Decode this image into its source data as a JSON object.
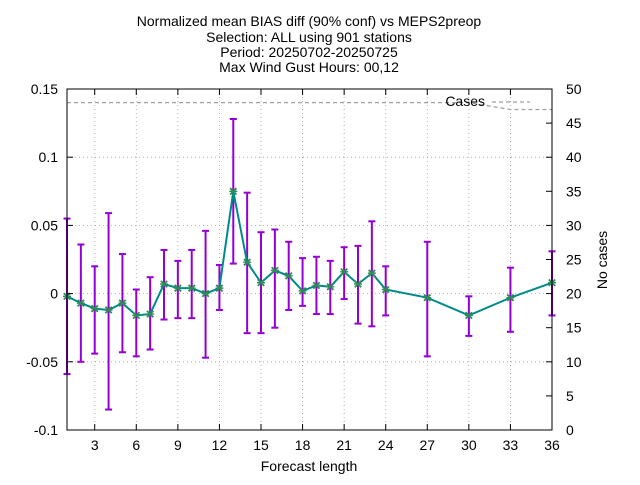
{
  "chart_data": {
    "type": "line",
    "title_lines": [
      "Normalized mean BIAS diff (90% conf) vs MEPS2preop",
      "Selection: ALL using   901 stations",
      "Period: 20250702-20250725",
      "Max Wind Gust   Hours: 00,12"
    ],
    "xlabel": "Forecast length",
    "ylabel": "",
    "y2label": "No cases",
    "xlim": [
      1,
      36
    ],
    "ylim": [
      -0.1,
      0.15
    ],
    "y2lim": [
      0,
      50
    ],
    "x_ticks": [
      3,
      6,
      9,
      12,
      15,
      18,
      21,
      24,
      27,
      30,
      33,
      36
    ],
    "y_ticks": [
      -0.1,
      -0.05,
      0,
      0.05,
      0.1,
      0.15
    ],
    "y_tick_labels": [
      "-0.1",
      "-0.05",
      "0",
      "0.05",
      "0.1",
      "0.15"
    ],
    "y2_ticks": [
      0,
      5,
      10,
      15,
      20,
      25,
      30,
      35,
      40,
      45,
      50
    ],
    "grid": true,
    "legend": "top-right",
    "series": [
      {
        "name": "",
        "color": "#008b8b",
        "marker_color": "#2e8b57",
        "x": [
          1,
          2,
          3,
          4,
          5,
          6,
          7,
          8,
          9,
          10,
          11,
          12,
          13,
          14,
          15,
          16,
          17,
          18,
          19,
          20,
          21,
          22,
          23,
          24,
          27,
          30,
          33,
          36
        ],
        "values": [
          -0.002,
          -0.007,
          -0.011,
          -0.012,
          -0.007,
          -0.016,
          -0.015,
          0.007,
          0.004,
          0.004,
          0.0,
          0.004,
          0.075,
          0.023,
          0.008,
          0.017,
          0.013,
          0.002,
          0.006,
          0.005,
          0.016,
          0.007,
          0.015,
          0.003,
          -0.003,
          -0.016,
          -0.003,
          0.008
        ],
        "error_low": [
          -0.059,
          -0.05,
          -0.044,
          -0.085,
          -0.043,
          -0.046,
          -0.041,
          -0.019,
          -0.018,
          -0.018,
          -0.047,
          -0.012,
          0.022,
          -0.029,
          -0.029,
          -0.025,
          -0.012,
          -0.009,
          -0.015,
          -0.015,
          -0.004,
          -0.022,
          -0.024,
          -0.016,
          -0.046,
          -0.031,
          -0.028,
          -0.016
        ],
        "error_high": [
          0.055,
          0.036,
          0.02,
          0.059,
          0.029,
          0.003,
          0.012,
          0.032,
          0.024,
          0.032,
          0.046,
          0.021,
          0.128,
          0.074,
          0.045,
          0.047,
          0.038,
          0.026,
          0.027,
          0.024,
          0.034,
          0.035,
          0.053,
          0.02,
          0.038,
          -0.002,
          0.019,
          0.031
        ]
      },
      {
        "name": "Cases",
        "color": "#a0a0a0",
        "axis": "y2",
        "x": [
          1,
          2,
          3,
          4,
          5,
          6,
          7,
          8,
          9,
          10,
          11,
          12,
          13,
          14,
          15,
          16,
          17,
          18,
          19,
          20,
          21,
          22,
          23,
          24,
          27,
          30,
          33,
          36
        ],
        "values": [
          48,
          48,
          48,
          48,
          48,
          48,
          48,
          48,
          48,
          48,
          48,
          48,
          48,
          48,
          48,
          48,
          48,
          48,
          48,
          48,
          48,
          48,
          48,
          48,
          48,
          48,
          47,
          47
        ]
      }
    ],
    "colors": {
      "error_bar": "#9400d3",
      "grid": "#a0a0a0",
      "axis": "#000000"
    }
  }
}
